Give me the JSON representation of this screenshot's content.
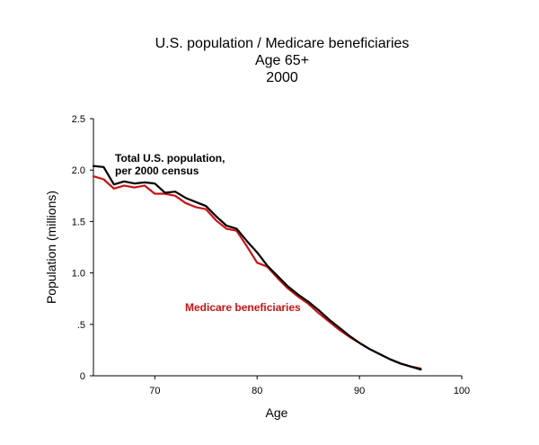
{
  "chart_data": {
    "type": "line",
    "title_lines": [
      "U.S. population / Medicare beneficiaries",
      "Age 65+",
      "2000"
    ],
    "xlabel": "Age",
    "ylabel": "Population (millions)",
    "xlim": [
      64,
      100
    ],
    "ylim": [
      0,
      2.5
    ],
    "x_ticks": [
      70,
      80,
      90,
      100
    ],
    "x_tick_labels": [
      "70",
      "80",
      "90",
      "100"
    ],
    "y_ticks": [
      0,
      0.5,
      1.0,
      1.5,
      2.0,
      2.5
    ],
    "y_tick_labels": [
      "0",
      ".5",
      "1.0",
      "1.5",
      "2.0",
      "2.5"
    ],
    "grid": false,
    "series": [
      {
        "name": "Total U.S. population, per 2000 census",
        "label_lines": [
          "Total U.S. population,",
          "per 2000 census"
        ],
        "color": "#000000",
        "x": [
          64,
          65,
          66,
          67,
          68,
          69,
          70,
          71,
          72,
          73,
          74,
          75,
          76,
          77,
          78,
          79,
          80,
          81,
          82,
          83,
          84,
          85,
          86,
          87,
          88,
          89,
          90,
          91,
          92,
          93,
          94,
          95,
          96
        ],
        "values": [
          2.04,
          2.03,
          1.86,
          1.89,
          1.87,
          1.88,
          1.87,
          1.78,
          1.79,
          1.73,
          1.69,
          1.65,
          1.55,
          1.46,
          1.43,
          1.31,
          1.2,
          1.07,
          0.97,
          0.87,
          0.79,
          0.72,
          0.64,
          0.55,
          0.47,
          0.39,
          0.32,
          0.26,
          0.21,
          0.16,
          0.12,
          0.09,
          0.06
        ]
      },
      {
        "name": "Medicare beneficiaries",
        "label_lines": [
          "Medicare beneficiaries"
        ],
        "color": "#cc1111",
        "x": [
          64,
          65,
          66,
          67,
          68,
          69,
          70,
          71,
          72,
          73,
          74,
          75,
          76,
          77,
          78,
          79,
          80,
          81,
          82,
          83,
          84,
          85,
          86,
          87,
          88,
          89,
          90,
          91,
          92,
          93,
          94,
          95,
          96
        ],
        "values": [
          1.94,
          1.91,
          1.82,
          1.85,
          1.83,
          1.85,
          1.77,
          1.77,
          1.75,
          1.68,
          1.64,
          1.62,
          1.51,
          1.43,
          1.41,
          1.26,
          1.1,
          1.06,
          0.95,
          0.85,
          0.77,
          0.7,
          0.61,
          0.53,
          0.45,
          0.38,
          0.32,
          0.26,
          0.21,
          0.16,
          0.12,
          0.09,
          0.07
        ]
      }
    ]
  }
}
